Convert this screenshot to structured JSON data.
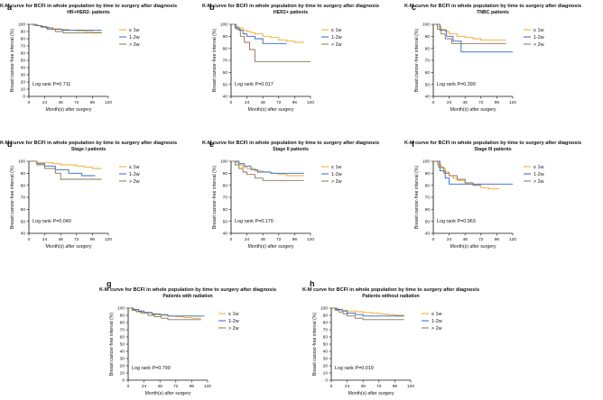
{
  "colors": {
    "le1w": "#f5a623",
    "w1to2": "#2f65c8",
    "gt2w": "#8a7452",
    "axis": "#111111"
  },
  "chart_data": [
    {
      "panel": "a",
      "type": "line",
      "title": "K-M curve for BCFI in whole population by time to surgery after diagnosis",
      "subtitle": "HR+HER2- patients",
      "xlabel": "Month(s) after surgery",
      "ylabel": "Breast cancer-free interval (%)",
      "xlim": [
        0,
        120
      ],
      "ylim": [
        0,
        100
      ],
      "xticks": [
        "0",
        "24",
        "48",
        "72",
        "96",
        "120"
      ],
      "yticks": [
        "0",
        "10",
        "20",
        "30",
        "40",
        "50",
        "60",
        "70",
        "80",
        "90",
        "100"
      ],
      "stat": "Log rank P=0.711",
      "series": [
        {
          "name": "≤ 1w",
          "color": "le1w",
          "x": [
            0,
            6,
            12,
            18,
            24,
            30,
            36,
            48,
            60,
            72,
            84,
            96,
            110
          ],
          "y": [
            100,
            99,
            98,
            97,
            96,
            95,
            94,
            93,
            92,
            91,
            90,
            89,
            89
          ]
        },
        {
          "name": "1-2w",
          "color": "w1to2",
          "x": [
            0,
            8,
            14,
            20,
            26,
            36,
            50,
            110
          ],
          "y": [
            100,
            99,
            98,
            97,
            95,
            93,
            92,
            92
          ]
        },
        {
          "name": "> 2w",
          "color": "gt2w",
          "x": [
            0,
            10,
            18,
            28,
            40,
            52,
            110
          ],
          "y": [
            100,
            98,
            96,
            93,
            90,
            88,
            88
          ]
        }
      ]
    },
    {
      "panel": "b",
      "type": "line",
      "title": "K-M curve for BCFI in whole population by time to surgery after diagnosis",
      "subtitle": "HER2+ patients",
      "xlabel": "Month(s) after surgery",
      "ylabel": "Breast cancer-free interval (%)",
      "xlim": [
        0,
        120
      ],
      "ylim": [
        40,
        100
      ],
      "xticks": [
        "0",
        "24",
        "48",
        "72",
        "96",
        "120"
      ],
      "yticks": [
        "40",
        "50",
        "60",
        "70",
        "80",
        "90",
        "100"
      ],
      "stat": "Log rank P=0.017",
      "series": [
        {
          "name": "≤ 1w",
          "color": "le1w",
          "x": [
            0,
            6,
            12,
            18,
            24,
            30,
            36,
            48,
            60,
            72,
            84,
            96,
            110
          ],
          "y": [
            100,
            98,
            97,
            95,
            94,
            93,
            92,
            90,
            89,
            87,
            86,
            85,
            85
          ]
        },
        {
          "name": "1-2w",
          "color": "w1to2",
          "x": [
            0,
            6,
            12,
            18,
            24,
            36,
            48,
            84
          ],
          "y": [
            100,
            97,
            95,
            92,
            90,
            88,
            84,
            84
          ]
        },
        {
          "name": "> 2w",
          "color": "gt2w",
          "x": [
            0,
            8,
            14,
            20,
            28,
            36,
            120
          ],
          "y": [
            100,
            96,
            90,
            85,
            79,
            69,
            69
          ]
        }
      ]
    },
    {
      "panel": "c",
      "type": "line",
      "title": "K-M curve for BCFI in whole population by time to surgery after diagnosis",
      "subtitle": "TNBC patients",
      "xlabel": "Month(s) after surgery",
      "ylabel": "Breast cancer-free interval (%)",
      "xlim": [
        0,
        120
      ],
      "ylim": [
        40,
        100
      ],
      "xticks": [
        "0",
        "24",
        "48",
        "72",
        "96",
        "120"
      ],
      "yticks": [
        "40",
        "50",
        "60",
        "70",
        "80",
        "90",
        "100"
      ],
      "stat": "Log rank P=0.399",
      "series": [
        {
          "name": "≤ 1w",
          "color": "le1w",
          "x": [
            0,
            6,
            12,
            18,
            24,
            36,
            48,
            60,
            72,
            110
          ],
          "y": [
            100,
            98,
            96,
            94,
            92,
            90,
            89,
            88,
            87,
            87
          ]
        },
        {
          "name": "1-2w",
          "color": "w1to2",
          "x": [
            0,
            10,
            20,
            30,
            42,
            120
          ],
          "y": [
            100,
            95,
            90,
            86,
            77,
            77
          ]
        },
        {
          "name": "> 2w",
          "color": "gt2w",
          "x": [
            0,
            6,
            12,
            18,
            28,
            110
          ],
          "y": [
            100,
            96,
            92,
            88,
            84,
            84
          ]
        }
      ]
    },
    {
      "panel": "d",
      "type": "line",
      "title": "K-M curve for BCFI in whole population by time to surgery after diagnosis",
      "subtitle": "Stage I patients",
      "xlabel": "Month(s) after surgery",
      "ylabel": "Breast cancer-free interval (%)",
      "xlim": [
        0,
        120
      ],
      "ylim": [
        40,
        100
      ],
      "xticks": [
        "0",
        "24",
        "48",
        "72",
        "96",
        "120"
      ],
      "yticks": [
        "40",
        "50",
        "60",
        "70",
        "80",
        "90",
        "100"
      ],
      "stat": "Log rank P=0.040",
      "series": [
        {
          "name": "≤ 1w",
          "color": "le1w",
          "x": [
            0,
            12,
            24,
            36,
            48,
            60,
            72,
            84,
            96,
            110
          ],
          "y": [
            100,
            99,
            99,
            98,
            97,
            97,
            96,
            95,
            94,
            94
          ]
        },
        {
          "name": "1-2w",
          "color": "w1to2",
          "x": [
            0,
            12,
            24,
            40,
            60,
            80,
            100
          ],
          "y": [
            100,
            98,
            96,
            93,
            90,
            88,
            88
          ]
        },
        {
          "name": "> 2w",
          "color": "gt2w",
          "x": [
            0,
            12,
            24,
            40,
            48,
            110
          ],
          "y": [
            100,
            97,
            94,
            90,
            85,
            85
          ]
        }
      ]
    },
    {
      "panel": "e",
      "type": "line",
      "title": "K-M curve for BCFI in whole population by time to surgery after diagnosis",
      "subtitle": "Stage II patients",
      "xlabel": "Month(s) after surgery",
      "ylabel": "Breast cancer-free interval (%)",
      "xlim": [
        0,
        120
      ],
      "ylim": [
        40,
        100
      ],
      "xticks": [
        "0",
        "24",
        "48",
        "72",
        "96",
        "120"
      ],
      "yticks": [
        "40",
        "50",
        "60",
        "70",
        "80",
        "90",
        "100"
      ],
      "stat": "Log rank P=0.170",
      "series": [
        {
          "name": "≤ 1w",
          "color": "le1w",
          "x": [
            0,
            6,
            12,
            18,
            24,
            36,
            48,
            60,
            72,
            84,
            96,
            110
          ],
          "y": [
            100,
            99,
            97,
            95,
            94,
            92,
            91,
            90,
            89,
            88,
            88,
            88
          ]
        },
        {
          "name": "1-2w",
          "color": "w1to2",
          "x": [
            0,
            12,
            20,
            30,
            40,
            60,
            110
          ],
          "y": [
            100,
            98,
            96,
            93,
            91,
            90,
            90
          ]
        },
        {
          "name": "> 2w",
          "color": "gt2w",
          "x": [
            0,
            6,
            12,
            18,
            24,
            36,
            48,
            110
          ],
          "y": [
            100,
            97,
            94,
            91,
            89,
            86,
            84,
            84
          ]
        }
      ]
    },
    {
      "panel": "f",
      "type": "line",
      "title": "K-M curve for BCFI in whole population by time to surgery after diagnosis",
      "subtitle": "Stage III patients",
      "xlabel": "Month(s) after surgery",
      "ylabel": "Breast cancer-free interval (%)",
      "xlim": [
        0,
        120
      ],
      "ylim": [
        40,
        100
      ],
      "xticks": [
        "0",
        "24",
        "48",
        "72",
        "96",
        "120"
      ],
      "yticks": [
        "40",
        "50",
        "60",
        "70",
        "80",
        "90",
        "100"
      ],
      "stat": "Log rank P=0.963",
      "series": [
        {
          "name": "≤ 1w",
          "color": "le1w",
          "x": [
            0,
            6,
            12,
            18,
            24,
            30,
            36,
            48,
            60,
            72,
            84,
            100
          ],
          "y": [
            100,
            97,
            94,
            91,
            88,
            86,
            84,
            82,
            80,
            78,
            77,
            77
          ]
        },
        {
          "name": "1-2w",
          "color": "w1to2",
          "x": [
            0,
            10,
            18,
            24,
            120
          ],
          "y": [
            100,
            92,
            86,
            81,
            81
          ]
        },
        {
          "name": "> 2w",
          "color": "gt2w",
          "x": [
            0,
            8,
            16,
            24,
            36,
            48,
            60,
            72
          ],
          "y": [
            100,
            95,
            90,
            88,
            85,
            82,
            80,
            80
          ]
        }
      ]
    },
    {
      "panel": "g",
      "type": "line",
      "title": "K-M curve for BCFI in whole population by time to surgery after diagnosis",
      "subtitle": "Patients with radiation",
      "xlabel": "Month(s) after surgery",
      "ylabel": "Breast cancer-free interval (%)",
      "xlim": [
        0,
        120
      ],
      "ylim": [
        0,
        100
      ],
      "xticks": [
        "0",
        "24",
        "48",
        "72",
        "96",
        "120"
      ],
      "yticks": [
        "0",
        "10",
        "20",
        "30",
        "40",
        "50",
        "60",
        "70",
        "80",
        "90",
        "100"
      ],
      "stat": "Log rank P=0.799",
      "series": [
        {
          "name": "≤ 1w",
          "color": "le1w",
          "x": [
            0,
            6,
            12,
            18,
            24,
            36,
            48,
            60,
            72,
            84,
            96,
            110
          ],
          "y": [
            100,
            98,
            96,
            94,
            93,
            91,
            90,
            89,
            88,
            87,
            86,
            86
          ]
        },
        {
          "name": "1-2w",
          "color": "w1to2",
          "x": [
            0,
            8,
            16,
            24,
            36,
            48,
            60,
            115
          ],
          "y": [
            100,
            98,
            96,
            94,
            92,
            91,
            89,
            89
          ]
        },
        {
          "name": "> 2w",
          "color": "gt2w",
          "x": [
            0,
            6,
            12,
            20,
            30,
            40,
            50,
            60,
            110
          ],
          "y": [
            100,
            97,
            95,
            93,
            90,
            88,
            86,
            84,
            84
          ]
        }
      ]
    },
    {
      "panel": "h",
      "type": "line",
      "title": "K-M curve for BCFI in whole population by time to surgery after diagnosis",
      "subtitle": "Patients without radiation",
      "xlabel": "Month(s) after surgery",
      "ylabel": "Breast cancer-free interval (%)",
      "xlim": [
        0,
        120
      ],
      "ylim": [
        0,
        100
      ],
      "xticks": [
        "0",
        "24",
        "48",
        "72",
        "96",
        "120"
      ],
      "yticks": [
        "0",
        "10",
        "20",
        "30",
        "40",
        "50",
        "60",
        "70",
        "80",
        "90",
        "100"
      ],
      "stat": "Log rank P=0.019",
      "series": [
        {
          "name": "≤ 1w",
          "color": "le1w",
          "x": [
            0,
            6,
            12,
            18,
            24,
            36,
            48,
            60,
            72,
            84,
            96,
            110
          ],
          "y": [
            100,
            99,
            98,
            97,
            96,
            95,
            94,
            93,
            92,
            91,
            90,
            90
          ]
        },
        {
          "name": "1-2w",
          "color": "w1to2",
          "x": [
            0,
            8,
            16,
            24,
            36,
            48,
            110
          ],
          "y": [
            100,
            98,
            96,
            93,
            91,
            89,
            89
          ]
        },
        {
          "name": "> 2w",
          "color": "gt2w",
          "x": [
            0,
            6,
            12,
            18,
            24,
            36,
            48,
            110
          ],
          "y": [
            100,
            97,
            94,
            92,
            89,
            86,
            84,
            84
          ]
        }
      ]
    }
  ]
}
